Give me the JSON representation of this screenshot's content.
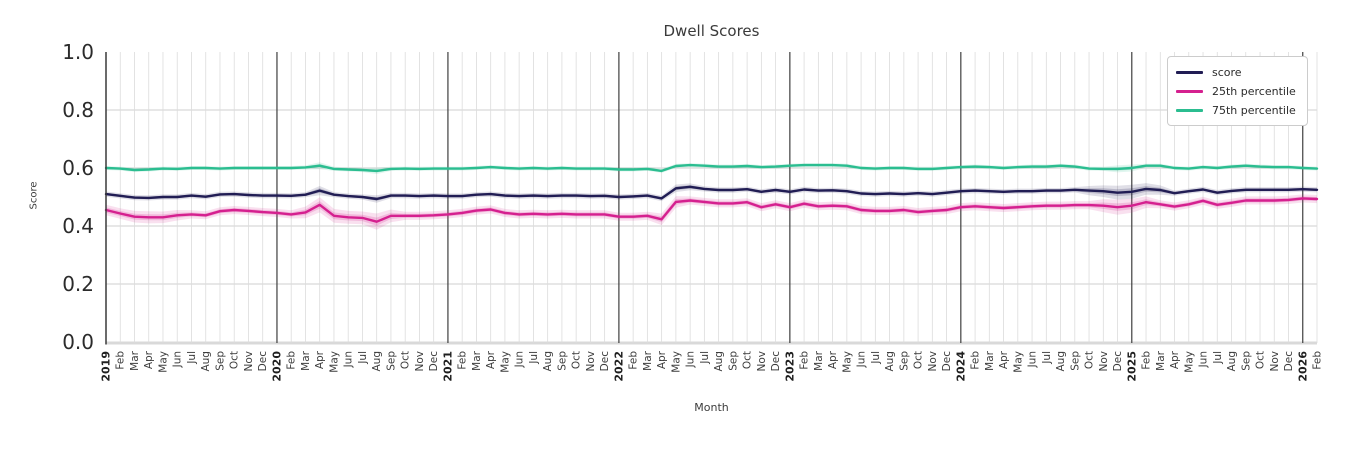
{
  "chart_data": {
    "type": "line",
    "title": "Dwell Scores",
    "xlabel": "Month",
    "ylabel": "Score",
    "ylim": [
      0.0,
      1.0
    ],
    "yticks": [
      0.0,
      0.2,
      0.4,
      0.6,
      0.8,
      1.0
    ],
    "grid": {
      "month_line_color": "#dcdcdc",
      "year_line_color": "#3f3f3f",
      "h_grid_color": "#cfcfcf",
      "baseline_color": "#d9d9d9",
      "spine_color": "#3a3a3a"
    },
    "legend_position": "upper right",
    "x_tick_labels": [
      "2019",
      "Feb",
      "Mar",
      "Apr",
      "May",
      "Jun",
      "Jul",
      "Aug",
      "Sep",
      "Oct",
      "Nov",
      "Dec",
      "2020",
      "Feb",
      "Mar",
      "Apr",
      "May",
      "Jun",
      "Jul",
      "Aug",
      "Sep",
      "Oct",
      "Nov",
      "Dec",
      "2021",
      "Feb",
      "Mar",
      "Apr",
      "May",
      "Jun",
      "Jul",
      "Aug",
      "Sep",
      "Oct",
      "Nov",
      "Dec",
      "2022",
      "Feb",
      "Mar",
      "Apr",
      "May",
      "Jun",
      "Jul",
      "Aug",
      "Sep",
      "Oct",
      "Nov",
      "Dec",
      "2023",
      "Feb",
      "Mar",
      "Apr",
      "May",
      "Jun",
      "Jul",
      "Aug",
      "Sep",
      "Oct",
      "Nov",
      "Dec",
      "2024",
      "Feb",
      "Mar",
      "Apr",
      "May",
      "Jun",
      "Jul",
      "Aug",
      "Sep",
      "Oct",
      "Nov",
      "Dec",
      "2025",
      "Feb",
      "Mar",
      "Apr",
      "May",
      "Jun",
      "Jul",
      "Aug",
      "Sep",
      "Oct",
      "Nov",
      "Dec",
      "2026",
      "Feb"
    ],
    "series": [
      {
        "name": "score",
        "color": "#211d54",
        "band_halfwidth": 0.009,
        "band_overrides": {
          "15": 0.016,
          "19": 0.013,
          "40": 0.013,
          "41": 0.012,
          "69": 0.016,
          "70": 0.02,
          "71": 0.024,
          "72": 0.024,
          "73": 0.02,
          "74": 0.016
        },
        "values": [
          0.51,
          0.504,
          0.498,
          0.497,
          0.5,
          0.5,
          0.505,
          0.501,
          0.509,
          0.51,
          0.507,
          0.505,
          0.505,
          0.504,
          0.508,
          0.522,
          0.508,
          0.503,
          0.5,
          0.493,
          0.505,
          0.505,
          0.503,
          0.505,
          0.503,
          0.503,
          0.508,
          0.51,
          0.505,
          0.503,
          0.505,
          0.503,
          0.505,
          0.505,
          0.503,
          0.504,
          0.5,
          0.502,
          0.505,
          0.495,
          0.53,
          0.535,
          0.528,
          0.524,
          0.524,
          0.527,
          0.518,
          0.524,
          0.518,
          0.526,
          0.522,
          0.523,
          0.52,
          0.512,
          0.51,
          0.512,
          0.51,
          0.513,
          0.51,
          0.515,
          0.52,
          0.522,
          0.52,
          0.518,
          0.52,
          0.52,
          0.522,
          0.522,
          0.525,
          0.522,
          0.52,
          0.515,
          0.518,
          0.528,
          0.524,
          0.513,
          0.52,
          0.526,
          0.515,
          0.521,
          0.525,
          0.525,
          0.525,
          0.525,
          0.527,
          0.525
        ]
      },
      {
        "name": "25th percentile",
        "color": "#d5208f",
        "band_halfwidth": 0.014,
        "band_overrides": {
          "0": 0.018,
          "1": 0.018,
          "2": 0.02,
          "3": 0.021,
          "4": 0.02,
          "5": 0.018,
          "14": 0.02,
          "15": 0.026,
          "16": 0.024,
          "17": 0.022,
          "18": 0.022,
          "19": 0.028,
          "20": 0.022,
          "39": 0.02,
          "40": 0.02,
          "70": 0.022,
          "71": 0.026,
          "72": 0.024,
          "73": 0.02
        },
        "values": [
          0.455,
          0.443,
          0.432,
          0.43,
          0.43,
          0.437,
          0.44,
          0.437,
          0.451,
          0.455,
          0.452,
          0.448,
          0.445,
          0.44,
          0.447,
          0.473,
          0.435,
          0.43,
          0.428,
          0.415,
          0.435,
          0.435,
          0.435,
          0.437,
          0.44,
          0.445,
          0.453,
          0.457,
          0.445,
          0.44,
          0.442,
          0.44,
          0.442,
          0.44,
          0.44,
          0.44,
          0.432,
          0.432,
          0.435,
          0.423,
          0.483,
          0.488,
          0.483,
          0.478,
          0.478,
          0.482,
          0.465,
          0.475,
          0.465,
          0.477,
          0.468,
          0.47,
          0.468,
          0.455,
          0.452,
          0.452,
          0.455,
          0.448,
          0.452,
          0.455,
          0.465,
          0.468,
          0.465,
          0.462,
          0.465,
          0.468,
          0.47,
          0.47,
          0.472,
          0.472,
          0.47,
          0.465,
          0.47,
          0.482,
          0.475,
          0.467,
          0.475,
          0.487,
          0.473,
          0.48,
          0.488,
          0.488,
          0.488,
          0.49,
          0.495,
          0.493
        ]
      },
      {
        "name": "75th percentile",
        "color": "#2bbd90",
        "band_halfwidth": 0.007,
        "band_overrides": {
          "15": 0.012,
          "19": 0.011,
          "71": 0.012,
          "72": 0.012
        },
        "values": [
          0.6,
          0.598,
          0.593,
          0.595,
          0.598,
          0.597,
          0.6,
          0.6,
          0.598,
          0.6,
          0.6,
          0.6,
          0.6,
          0.6,
          0.602,
          0.608,
          0.597,
          0.595,
          0.593,
          0.59,
          0.597,
          0.598,
          0.597,
          0.598,
          0.598,
          0.598,
          0.6,
          0.603,
          0.6,
          0.598,
          0.6,
          0.598,
          0.6,
          0.598,
          0.598,
          0.598,
          0.595,
          0.595,
          0.597,
          0.59,
          0.607,
          0.61,
          0.608,
          0.605,
          0.605,
          0.607,
          0.603,
          0.605,
          0.608,
          0.61,
          0.61,
          0.61,
          0.608,
          0.6,
          0.598,
          0.6,
          0.6,
          0.597,
          0.597,
          0.6,
          0.603,
          0.605,
          0.603,
          0.6,
          0.603,
          0.605,
          0.605,
          0.608,
          0.605,
          0.598,
          0.597,
          0.597,
          0.6,
          0.608,
          0.608,
          0.6,
          0.598,
          0.603,
          0.6,
          0.605,
          0.608,
          0.605,
          0.603,
          0.603,
          0.6,
          0.598
        ]
      }
    ]
  }
}
